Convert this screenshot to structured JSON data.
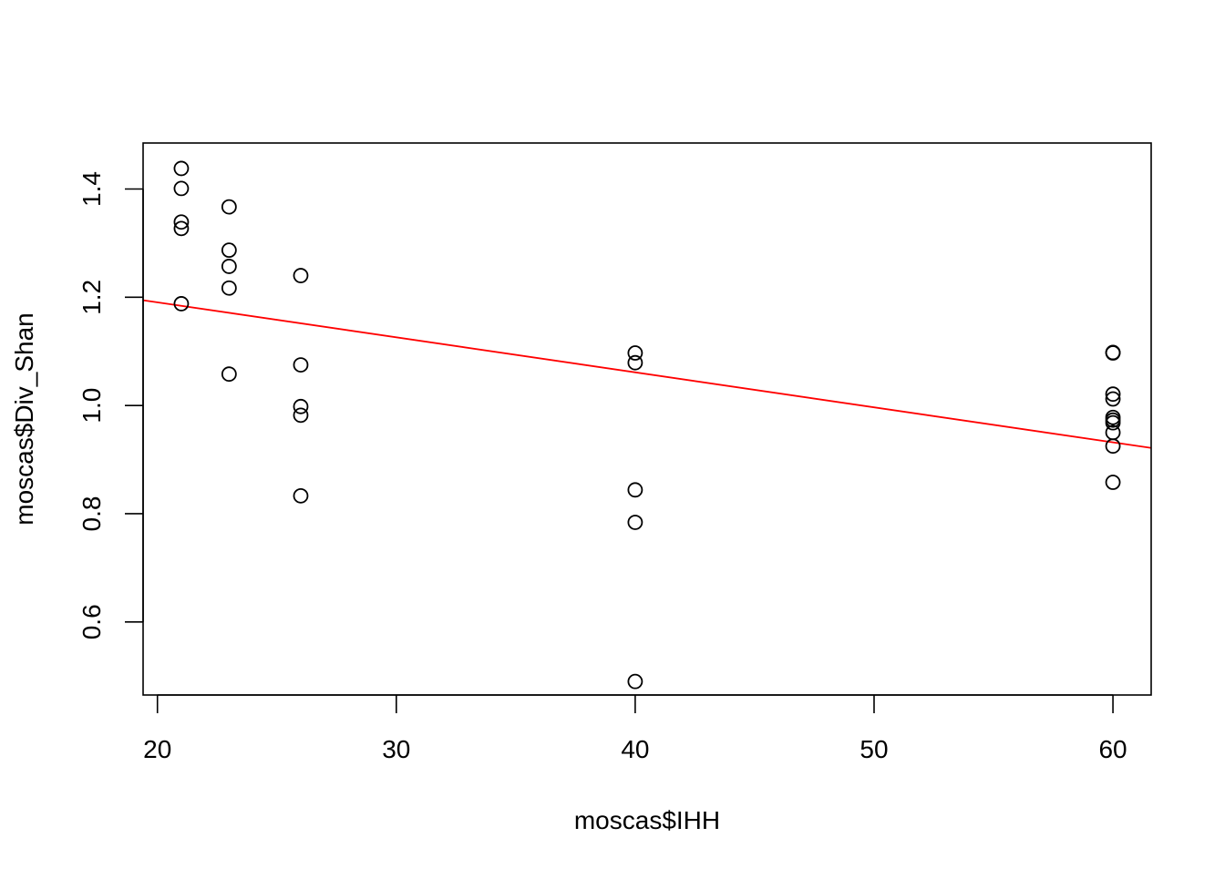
{
  "chart_data": {
    "type": "scatter",
    "title": "",
    "xlabel": "moscas$IHH",
    "ylabel": "moscas$Div_Shan",
    "xlim": [
      19.4,
      61.6
    ],
    "ylim": [
      0.465,
      1.485
    ],
    "x_ticks": [
      20,
      30,
      40,
      50,
      60
    ],
    "y_ticks": [
      0.6,
      0.8,
      1.0,
      1.2,
      1.4
    ],
    "x_tick_labels": [
      "20",
      "30",
      "40",
      "50",
      "60"
    ],
    "y_tick_labels": [
      "0.6",
      "0.8",
      "1.0",
      "1.2",
      "1.4"
    ],
    "grid": false,
    "legend": "none",
    "point_style": "open-circle",
    "series": [
      {
        "points": [
          {
            "x": 21,
            "y": 1.438
          },
          {
            "x": 21,
            "y": 1.401
          },
          {
            "x": 21,
            "y": 1.339
          },
          {
            "x": 21,
            "y": 1.327
          },
          {
            "x": 21,
            "y": 1.188
          },
          {
            "x": 23,
            "y": 1.367
          },
          {
            "x": 23,
            "y": 1.287
          },
          {
            "x": 23,
            "y": 1.257
          },
          {
            "x": 23,
            "y": 1.217
          },
          {
            "x": 23,
            "y": 1.058
          },
          {
            "x": 26,
            "y": 1.24
          },
          {
            "x": 26,
            "y": 1.075
          },
          {
            "x": 26,
            "y": 0.998
          },
          {
            "x": 26,
            "y": 0.982
          },
          {
            "x": 26,
            "y": 0.833
          },
          {
            "x": 40,
            "y": 1.097
          },
          {
            "x": 40,
            "y": 1.079
          },
          {
            "x": 40,
            "y": 0.844
          },
          {
            "x": 40,
            "y": 0.784
          },
          {
            "x": 40,
            "y": 0.49
          },
          {
            "x": 60,
            "y": 1.098
          },
          {
            "x": 60,
            "y": 1.097
          },
          {
            "x": 60,
            "y": 1.021
          },
          {
            "x": 60,
            "y": 1.012
          },
          {
            "x": 60,
            "y": 0.978
          },
          {
            "x": 60,
            "y": 0.973
          },
          {
            "x": 60,
            "y": 0.968
          },
          {
            "x": 60,
            "y": 0.95
          },
          {
            "x": 60,
            "y": 0.925
          },
          {
            "x": 60,
            "y": 0.858
          }
        ]
      }
    ],
    "fit_line": {
      "color": "#ff0000",
      "x0": 19.4,
      "y0": 1.1945,
      "x1": 61.6,
      "y1": 0.9215
    },
    "point_color": "#000000",
    "axis_color": "#000000"
  }
}
